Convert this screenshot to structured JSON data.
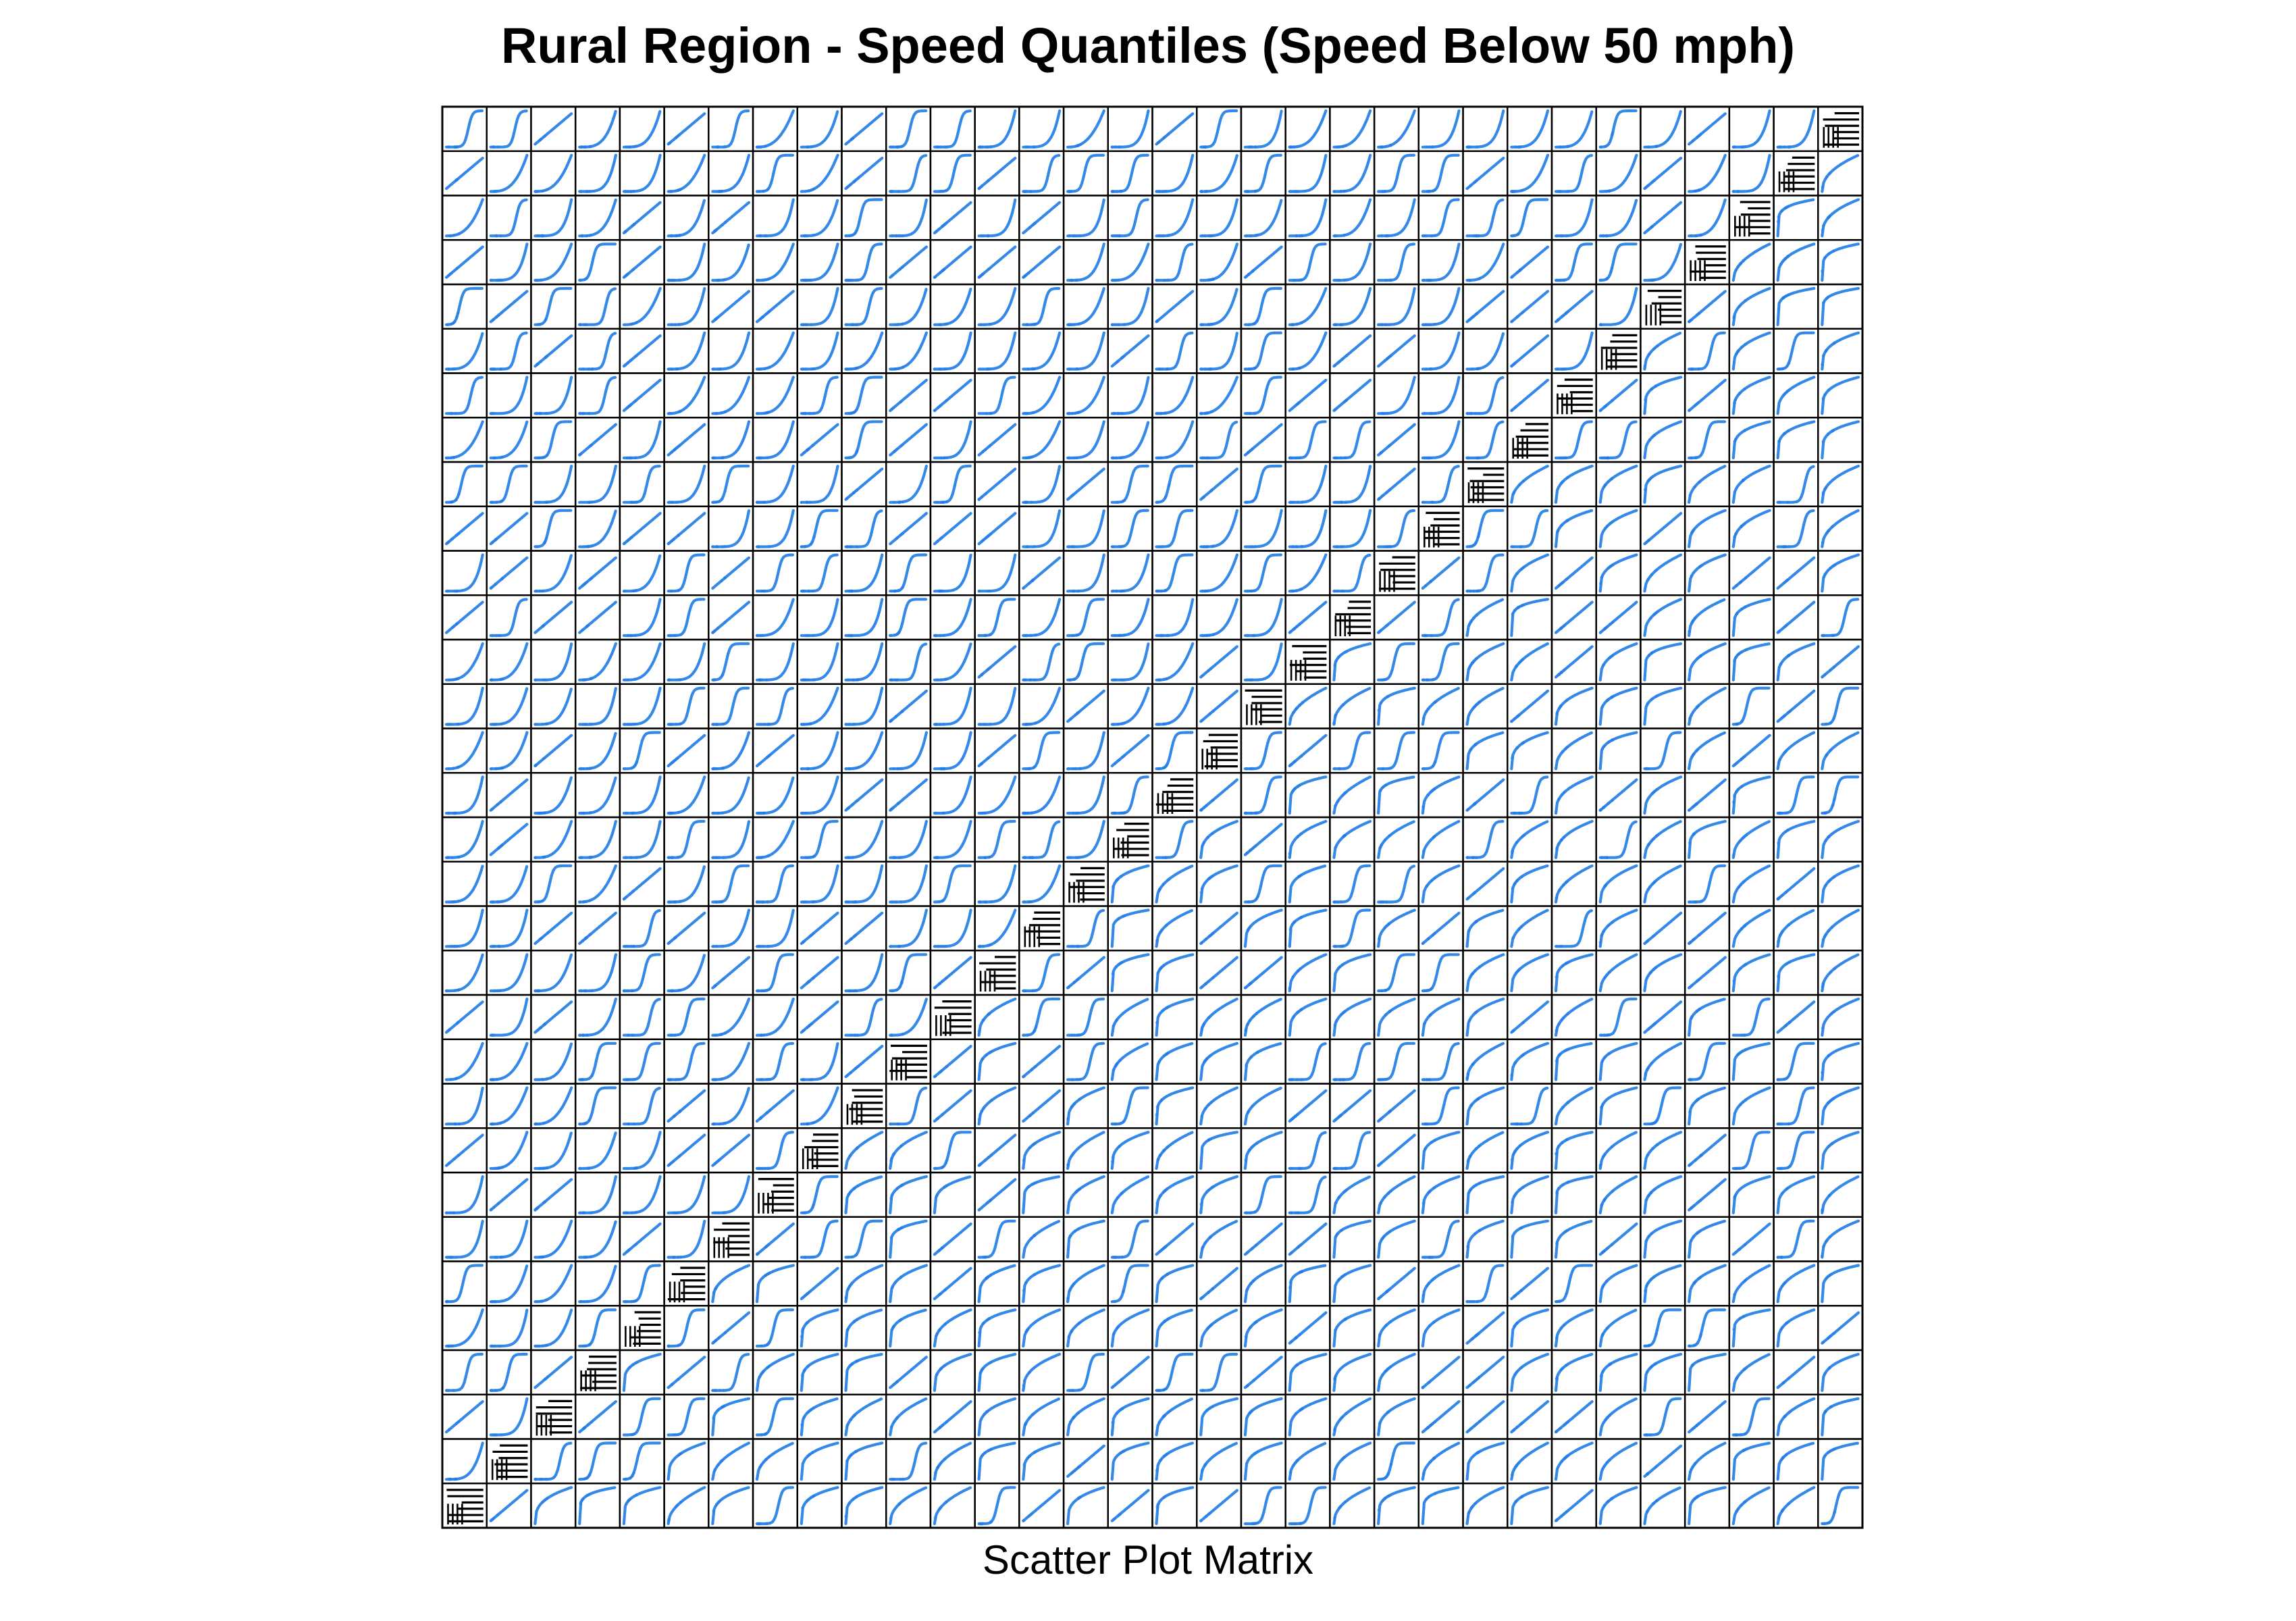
{
  "chart_data": {
    "type": "scatter",
    "layout": "scatter-plot-matrix",
    "title": "Rural Region - Speed Quantiles (Speed Below 50 mph)",
    "xlabel": "Scatter Plot Matrix",
    "ylabel": "",
    "dimensions": 32,
    "diagonal": "variable panels (no readable labels)",
    "grid": false,
    "legend": "none",
    "colors": {
      "points": "#1E7BE6",
      "panel_border": "#000000",
      "background": "#FFFFFF"
    }
  }
}
